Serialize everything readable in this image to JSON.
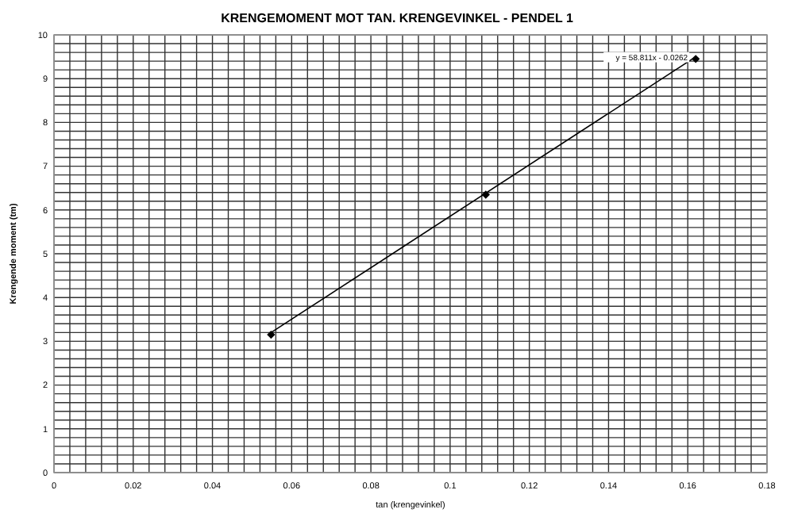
{
  "chart_data": {
    "type": "scatter",
    "title": "KRENGEMOMENT MOT TAN. KRENGEVINKEL - PENDEL 1",
    "xlabel": "tan (krengevinkel)",
    "ylabel": "Krengende moment (tm)",
    "xlim": [
      0,
      0.18
    ],
    "ylim": [
      0,
      10
    ],
    "xticks": [
      0,
      {
        "value": 0.004,
        "label": null
      },
      {
        "value": 0.008,
        "label": null
      },
      {
        "value": 0.012,
        "label": null
      },
      {
        "value": 0.016,
        "label": null
      },
      0.02,
      {
        "value": 0.024,
        "label": null
      },
      {
        "value": 0.028,
        "label": null
      },
      {
        "value": 0.032,
        "label": null
      },
      {
        "value": 0.036,
        "label": null
      },
      0.04,
      {
        "value": 0.044,
        "label": null
      },
      {
        "value": 0.048,
        "label": null
      },
      {
        "value": 0.052,
        "label": null
      },
      {
        "value": 0.056,
        "label": null
      },
      0.06,
      {
        "value": 0.064,
        "label": null
      },
      {
        "value": 0.068,
        "label": null
      },
      {
        "value": 0.072,
        "label": null
      },
      {
        "value": 0.076,
        "label": null
      },
      0.08,
      {
        "value": 0.084,
        "label": null
      },
      {
        "value": 0.088,
        "label": null
      },
      {
        "value": 0.092,
        "label": null
      },
      {
        "value": 0.096,
        "label": null
      },
      0.1,
      {
        "value": 0.104,
        "label": null
      },
      {
        "value": 0.108,
        "label": null
      },
      {
        "value": 0.112,
        "label": null
      },
      {
        "value": 0.116,
        "label": null
      },
      0.12,
      {
        "value": 0.124,
        "label": null
      },
      {
        "value": 0.128,
        "label": null
      },
      {
        "value": 0.132,
        "label": null
      },
      {
        "value": 0.136,
        "label": null
      },
      0.14,
      {
        "value": 0.144,
        "label": null
      },
      {
        "value": 0.148,
        "label": null
      },
      {
        "value": 0.152,
        "label": null
      },
      {
        "value": 0.156,
        "label": null
      },
      0.16,
      {
        "value": 0.164,
        "label": null
      },
      {
        "value": 0.168,
        "label": null
      },
      {
        "value": 0.172,
        "label": null
      },
      {
        "value": 0.176,
        "label": null
      },
      0.18
    ],
    "yticks": [
      0,
      {
        "value": 0.2,
        "label": null
      },
      {
        "value": 0.4,
        "label": null
      },
      {
        "value": 0.6,
        "label": null
      },
      {
        "value": 0.8,
        "label": null
      },
      1,
      {
        "value": 1.2,
        "label": null
      },
      {
        "value": 1.4,
        "label": null
      },
      {
        "value": 1.6,
        "label": null
      },
      {
        "value": 1.8,
        "label": null
      },
      2,
      {
        "value": 2.2,
        "label": null
      },
      {
        "value": 2.4,
        "label": null
      },
      {
        "value": 2.6,
        "label": null
      },
      {
        "value": 2.8,
        "label": null
      },
      3,
      {
        "value": 3.2,
        "label": null
      },
      {
        "value": 3.4,
        "label": null
      },
      {
        "value": 3.6,
        "label": null
      },
      {
        "value": 3.8,
        "label": null
      },
      4,
      {
        "value": 4.2,
        "label": null
      },
      {
        "value": 4.4,
        "label": null
      },
      {
        "value": 4.6,
        "label": null
      },
      {
        "value": 4.8,
        "label": null
      },
      5,
      {
        "value": 5.2,
        "label": null
      },
      {
        "value": 5.4,
        "label": null
      },
      {
        "value": 5.6,
        "label": null
      },
      {
        "value": 5.8,
        "label": null
      },
      6,
      {
        "value": 6.2,
        "label": null
      },
      {
        "value": 6.4,
        "label": null
      },
      {
        "value": 6.6,
        "label": null
      },
      {
        "value": 6.8,
        "label": null
      },
      7,
      {
        "value": 7.2,
        "label": null
      },
      {
        "value": 7.4,
        "label": null
      },
      {
        "value": 7.6,
        "label": null
      },
      {
        "value": 7.8,
        "label": null
      },
      8,
      {
        "value": 8.2,
        "label": null
      },
      {
        "value": 8.4,
        "label": null
      },
      {
        "value": 8.6,
        "label": null
      },
      {
        "value": 8.8,
        "label": null
      },
      9,
      {
        "value": 9.2,
        "label": null
      },
      {
        "value": 9.4,
        "label": null
      },
      {
        "value": 9.6,
        "label": null
      },
      {
        "value": 9.8,
        "label": null
      },
      10
    ],
    "grid": true,
    "marker": "diamond",
    "series": [
      {
        "color": "#000000",
        "x": [
          0.0548,
          0.109,
          0.162
        ],
        "values": [
          3.15,
          6.35,
          9.45
        ]
      },
      {
        "type": "line",
        "color": "#000000",
        "line_style": "solid",
        "marker": "none",
        "x": [
          0.0548,
          0.162
        ],
        "values": [
          3.2,
          9.5
        ]
      }
    ],
    "annotations": [
      {
        "text": "y = 58.811x - 0.0262",
        "x": 0.162,
        "y": 9.5
      }
    ]
  }
}
